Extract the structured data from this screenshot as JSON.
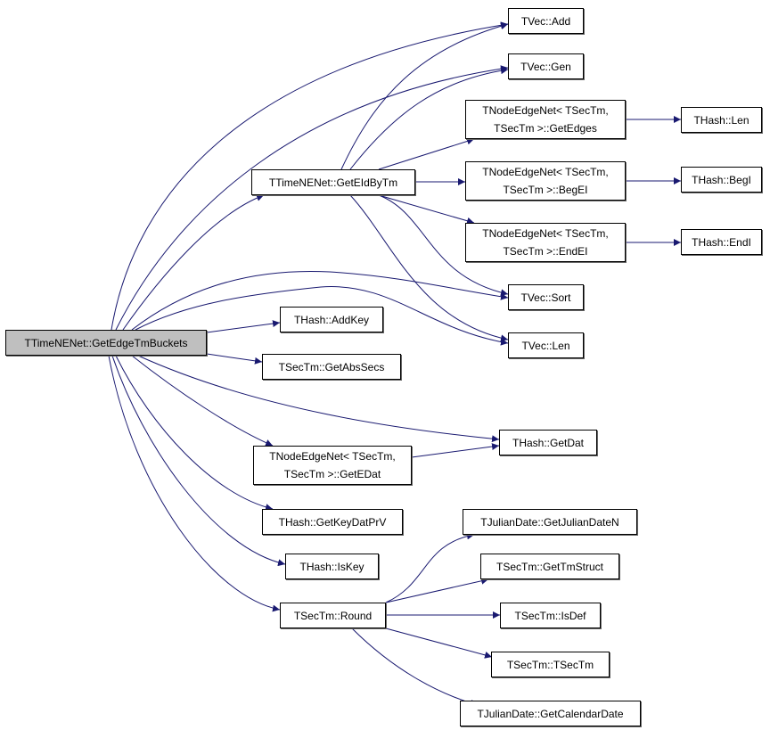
{
  "edge_color": "#191970",
  "root_fill": "#bfbfbf",
  "nodes": [
    {
      "id": "root",
      "label": "TTimeNENet::GetEdgeTmBuckets"
    },
    {
      "id": "vec_add",
      "label": "TVec::Add"
    },
    {
      "id": "vec_gen",
      "label": "TVec::Gen"
    },
    {
      "id": "get_edges",
      "label": "TNodeEdgeNet< TSecTm,\nTSecTm >::GetEdges"
    },
    {
      "id": "hash_len",
      "label": "THash::Len"
    },
    {
      "id": "get_eid_by_tm",
      "label": "TTimeNENet::GetEIdByTm"
    },
    {
      "id": "beg_ei",
      "label": "TNodeEdgeNet< TSecTm,\nTSecTm >::BegEI"
    },
    {
      "id": "hash_begi",
      "label": "THash::BegI"
    },
    {
      "id": "end_ei",
      "label": "TNodeEdgeNet< TSecTm,\nTSecTm >::EndEI"
    },
    {
      "id": "hash_endi",
      "label": "THash::EndI"
    },
    {
      "id": "vec_sort",
      "label": "TVec::Sort"
    },
    {
      "id": "hash_addkey",
      "label": "THash::AddKey"
    },
    {
      "id": "vec_len",
      "label": "TVec::Len"
    },
    {
      "id": "get_abs_secs",
      "label": "TSecTm::GetAbsSecs"
    },
    {
      "id": "hash_getdat",
      "label": "THash::GetDat"
    },
    {
      "id": "get_edat",
      "label": "TNodeEdgeNet< TSecTm,\nTSecTm >::GetEDat"
    },
    {
      "id": "hash_getkeydatprv",
      "label": "THash::GetKeyDatPrV"
    },
    {
      "id": "hash_iskey",
      "label": "THash::IsKey"
    },
    {
      "id": "round",
      "label": "TSecTm::Round"
    },
    {
      "id": "julian_daten",
      "label": "TJulianDate::GetJulianDateN"
    },
    {
      "id": "get_tm_struct",
      "label": "TSecTm::GetTmStruct"
    },
    {
      "id": "is_def",
      "label": "TSecTm::IsDef"
    },
    {
      "id": "tsectm_ctor",
      "label": "TSecTm::TSecTm"
    },
    {
      "id": "calendar_date",
      "label": "TJulianDate::GetCalendarDate"
    }
  ],
  "edges": [
    [
      "root",
      "vec_add"
    ],
    [
      "root",
      "vec_gen"
    ],
    [
      "root",
      "get_eid_by_tm"
    ],
    [
      "root",
      "vec_sort"
    ],
    [
      "root",
      "vec_len"
    ],
    [
      "root",
      "hash_addkey"
    ],
    [
      "root",
      "get_abs_secs"
    ],
    [
      "root",
      "hash_getdat"
    ],
    [
      "root",
      "get_edat"
    ],
    [
      "root",
      "hash_getkeydatprv"
    ],
    [
      "root",
      "hash_iskey"
    ],
    [
      "root",
      "round"
    ],
    [
      "get_eid_by_tm",
      "vec_add"
    ],
    [
      "get_eid_by_tm",
      "vec_gen"
    ],
    [
      "get_eid_by_tm",
      "get_edges"
    ],
    [
      "get_eid_by_tm",
      "beg_ei"
    ],
    [
      "get_eid_by_tm",
      "end_ei"
    ],
    [
      "get_eid_by_tm",
      "vec_sort"
    ],
    [
      "get_eid_by_tm",
      "vec_len"
    ],
    [
      "get_edges",
      "hash_len"
    ],
    [
      "beg_ei",
      "hash_begi"
    ],
    [
      "end_ei",
      "hash_endi"
    ],
    [
      "get_edat",
      "hash_getdat"
    ],
    [
      "round",
      "julian_daten"
    ],
    [
      "round",
      "get_tm_struct"
    ],
    [
      "round",
      "is_def"
    ],
    [
      "round",
      "tsectm_ctor"
    ],
    [
      "round",
      "calendar_date"
    ]
  ]
}
